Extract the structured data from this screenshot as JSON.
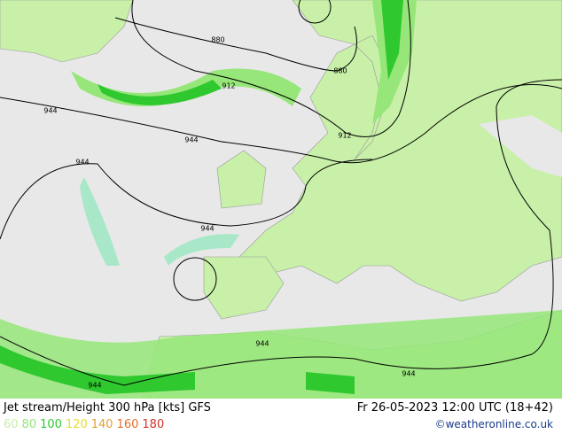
{
  "map": {
    "contour_labels": [
      "880",
      "880",
      "912",
      "912",
      "944",
      "944",
      "944",
      "944",
      "944",
      "944",
      "944"
    ]
  },
  "footer": {
    "title": "Jet stream/Height 300 hPa [kts] GFS",
    "datetime": "Fr 26-05-2023 12:00 UTC (18+42)",
    "credit": "©weatheronline.co.uk",
    "legend": [
      {
        "value": 60,
        "color": "#c8f0a8"
      },
      {
        "value": 80,
        "color": "#96e67a"
      },
      {
        "value": 100,
        "color": "#2fc82f"
      },
      {
        "value": 120,
        "color": "#e6dc32"
      },
      {
        "value": 140,
        "color": "#e6a032"
      },
      {
        "value": 160,
        "color": "#e66e28"
      },
      {
        "value": 180,
        "color": "#d23228"
      }
    ]
  }
}
